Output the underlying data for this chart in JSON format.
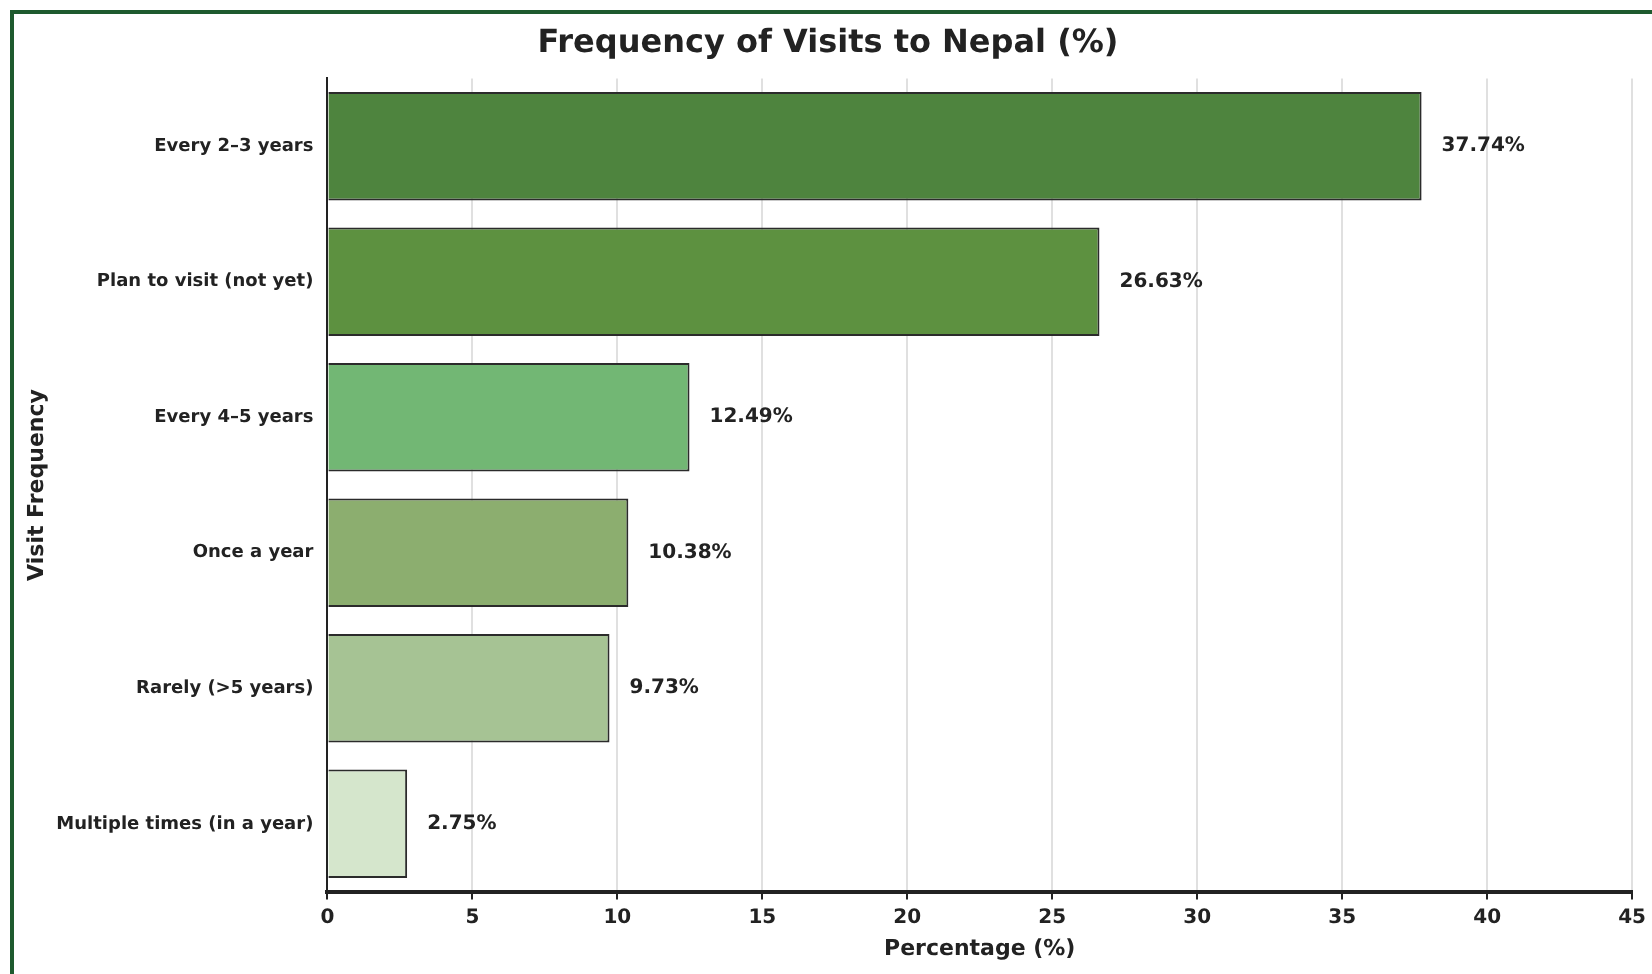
{
  "chart_data": {
    "type": "bar",
    "orientation": "horizontal",
    "title": "Frequency of Visits to Nepal (%)",
    "xlabel": "Percentage (%)",
    "ylabel": "Visit Frequency",
    "categories": [
      "Every 2–3 years",
      "Plan to visit (not yet)",
      "Every 4–5 years",
      "Once a year",
      "Rarely (>5 years)",
      "Multiple times (in a year)"
    ],
    "values": [
      37.74,
      26.63,
      12.49,
      10.38,
      9.73,
      2.75
    ],
    "colors": [
      "#4e843e",
      "#5d9140",
      "#72b774",
      "#8cae6f",
      "#a6c394",
      "#d5e6cc"
    ],
    "value_labels": [
      "37.74%",
      "26.63%",
      "12.49%",
      "10.38%",
      "9.73%",
      "2.75%"
    ],
    "xlim": [
      0,
      45
    ],
    "xticks": [
      0,
      5,
      10,
      15,
      20,
      25,
      30,
      35,
      40,
      45
    ],
    "grid": "x"
  }
}
